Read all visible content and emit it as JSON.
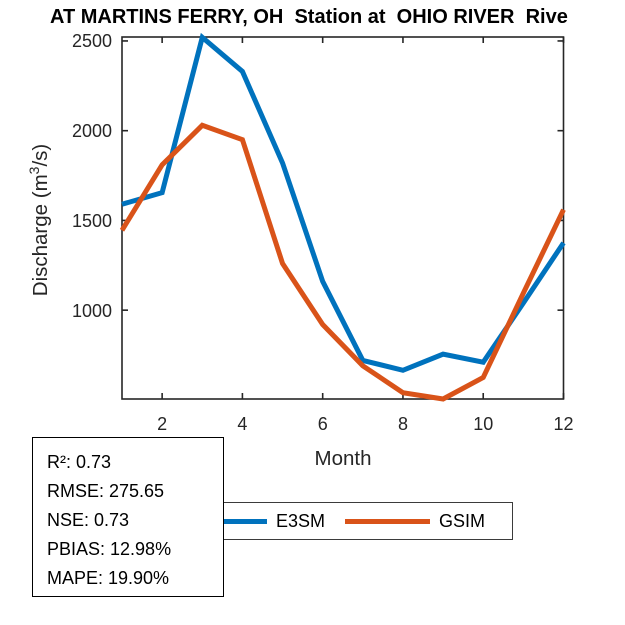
{
  "title": "AT MARTINS FERRY, OH  Station at  OHIO RIVER  Rive",
  "chart_data": {
    "type": "line",
    "title": "AT MARTINS FERRY, OH  Station at  OHIO RIVER  Rive",
    "xlabel": "Month",
    "ylabel": "Discharge (m³/s)",
    "ylabel_parts": {
      "pre": "Discharge (m",
      "sup": "3",
      "post": "/s)"
    },
    "x": [
      1,
      2,
      3,
      4,
      5,
      6,
      7,
      8,
      9,
      10,
      11,
      12
    ],
    "xticks": [
      2,
      4,
      6,
      8,
      10,
      12
    ],
    "yticks": [
      2500,
      2000,
      1500,
      1000
    ],
    "xlim": [
      1,
      12
    ],
    "ylim": [
      505,
      2522
    ],
    "grid": false,
    "legend_position": "below-axes-left",
    "series": [
      {
        "name": "E3SM",
        "color": "#0072BD",
        "values": [
          1590,
          1655,
          2520,
          2330,
          1820,
          1160,
          720,
          665,
          755,
          710,
          1040,
          1375
        ]
      },
      {
        "name": "GSIM",
        "color": "#D95319",
        "values": [
          1445,
          1810,
          2030,
          1950,
          1260,
          920,
          690,
          540,
          505,
          625,
          1095,
          1560
        ]
      }
    ]
  },
  "legend": {
    "items": [
      {
        "label": "E3SM",
        "color": "#0072BD"
      },
      {
        "label": "GSIM",
        "color": "#D95319"
      }
    ]
  },
  "stats_box": {
    "lines": [
      "R²: 0.73",
      "RMSE: 275.65",
      "NSE: 0.73",
      "PBIAS: 12.98%",
      "MAPE: 19.90%"
    ]
  },
  "axis_color": "#262626"
}
